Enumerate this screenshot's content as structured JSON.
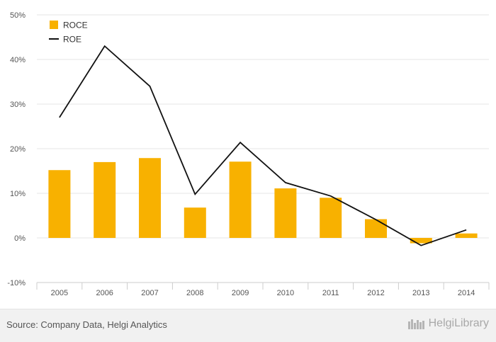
{
  "chart_data": {
    "type": "bar",
    "title": "",
    "xlabel": "",
    "ylabel": "",
    "categories": [
      "2005",
      "2006",
      "2007",
      "2008",
      "2009",
      "2010",
      "2011",
      "2012",
      "2013",
      "2014"
    ],
    "series": [
      {
        "name": "ROCE",
        "type": "bar",
        "color": "#f8b100",
        "values": [
          15.2,
          17.0,
          17.9,
          6.8,
          17.1,
          11.1,
          9.0,
          4.2,
          -1.2,
          1.0
        ]
      },
      {
        "name": "ROE",
        "type": "line",
        "color": "#111111",
        "values": [
          27.0,
          43.0,
          34.0,
          9.8,
          21.4,
          12.4,
          9.4,
          4.1,
          -1.7,
          1.8
        ]
      }
    ],
    "ylim": [
      -10,
      50
    ],
    "yticks": [
      -10,
      0,
      10,
      20,
      30,
      40,
      50
    ],
    "ytick_labels": [
      "-10%",
      "0%",
      "10%",
      "20%",
      "30%",
      "40%",
      "50%"
    ],
    "grid": true,
    "legend_position": "top-left"
  },
  "footer": {
    "source": "Source: Company Data, Helgi Analytics",
    "brand": "HelgiLibrary"
  }
}
